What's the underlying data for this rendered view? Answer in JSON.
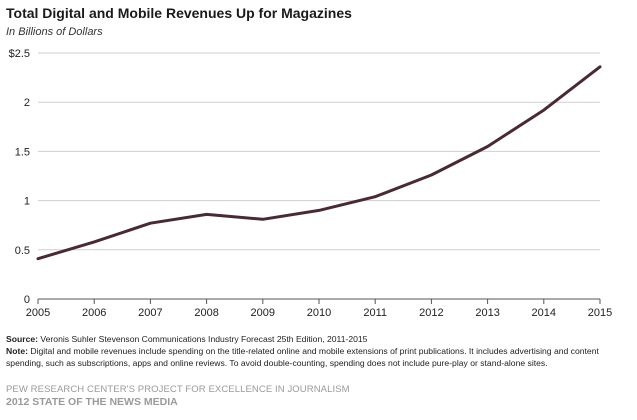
{
  "header": {
    "title": "Total Digital and Mobile Revenues Up for Magazines",
    "subtitle": "In Billions of Dollars"
  },
  "chart_data": {
    "type": "line",
    "title": "Total Digital and Mobile Revenues Up for Magazines",
    "subtitle": "In Billions of Dollars",
    "xlabel": "",
    "ylabel": "",
    "x": [
      2005,
      2006,
      2007,
      2008,
      2009,
      2010,
      2011,
      2012,
      2013,
      2014,
      2015
    ],
    "series": [
      {
        "name": "",
        "values": [
          0.41,
          0.58,
          0.77,
          0.86,
          0.81,
          0.9,
          1.04,
          1.26,
          1.55,
          1.92,
          2.36
        ],
        "color": "#4a2a32"
      }
    ],
    "ylim": [
      0,
      2.5
    ],
    "yticks": [
      0,
      0.5,
      1,
      1.5,
      2,
      2.5
    ],
    "ytick_labels": [
      "0",
      "0.5",
      "1",
      "1.5",
      "2",
      "$2.5"
    ],
    "xtick_labels": [
      "2005",
      "2006",
      "2007",
      "2008",
      "2009",
      "2010",
      "2011",
      "2012",
      "2013",
      "2014",
      "2015"
    ],
    "grid": true,
    "legend": "none"
  },
  "footer": {
    "source_label": "Source:",
    "source_text": "Veronis Suhler Stevenson Communications Industry Forecast 25th Edition, 2011-2015",
    "note_label": "Note:",
    "note_text": "Digital and mobile revenues include spending on the title-related online and mobile extensions of print publications. It includes advertising and content spending, such as subscriptions, apps and online reviews. To avoid double-counting, spending does not include pure-play or stand-alone sites.",
    "org": "PEW RESEARCH CENTER'S PROJECT FOR EXCELLENCE IN JOURNALISM",
    "report": "2012 STATE OF THE NEWS MEDIA"
  }
}
